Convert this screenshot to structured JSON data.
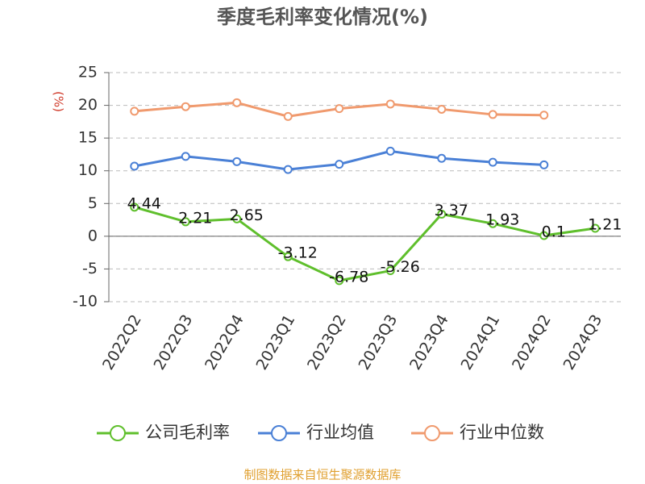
{
  "chart_data": {
    "type": "line",
    "title": "季度毛利率变化情况(%)",
    "ylabel": "(%)",
    "source": "制图数据来自恒生聚源数据库",
    "categories": [
      "2022Q2",
      "2022Q3",
      "2022Q4",
      "2023Q1",
      "2023Q2",
      "2023Q3",
      "2023Q4",
      "2024Q1",
      "2024Q2",
      "2024Q3"
    ],
    "series": [
      {
        "name": "公司毛利率",
        "color": "#5fbf2c",
        "values": [
          4.44,
          2.21,
          2.65,
          -3.12,
          -6.78,
          -5.26,
          3.37,
          1.93,
          0.1,
          1.21
        ],
        "labels": true
      },
      {
        "name": "行业均值",
        "color": "#4a80d6",
        "values": [
          10.7,
          12.2,
          11.4,
          10.2,
          11.0,
          13.0,
          11.9,
          11.3,
          10.9,
          null
        ]
      },
      {
        "name": "行业中位数",
        "color": "#f09a6e",
        "values": [
          19.1,
          19.8,
          20.4,
          18.3,
          19.5,
          20.2,
          19.4,
          18.6,
          18.5,
          null
        ]
      }
    ],
    "ylim": [
      -10,
      25
    ],
    "yticks": [
      -10,
      -5,
      0,
      5,
      10,
      15,
      20,
      25
    ],
    "grid": true
  }
}
